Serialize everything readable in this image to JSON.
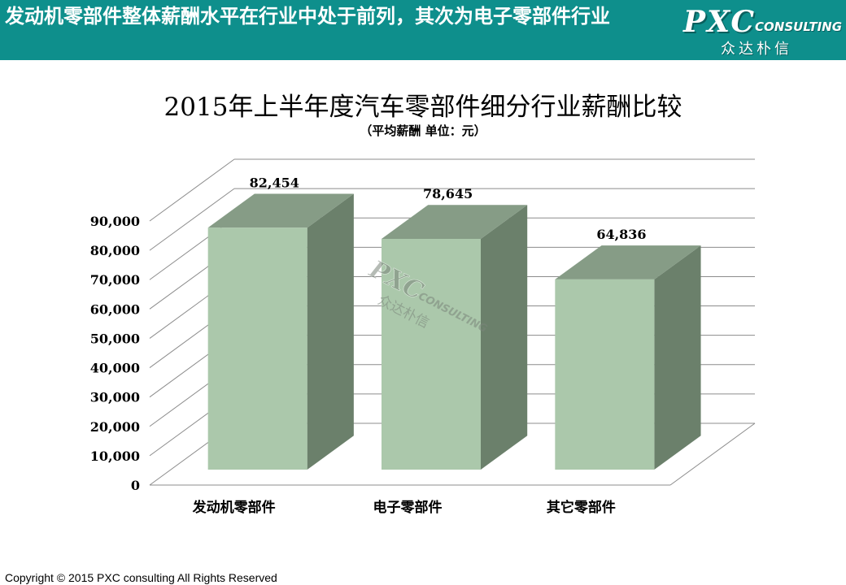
{
  "header": {
    "title": "发动机零部件整体薪酬水平在行业中处于前列，其次为电子零部件行业",
    "logo_main": "PXC",
    "logo_sub": "CONSULTING",
    "logo_cn": "众达朴信"
  },
  "watermark": {
    "main": "PXC",
    "sub": "CONSULTING",
    "cn": "众达朴信"
  },
  "footer": {
    "copyright": "Copyright © 2015  PXC consulting All Rights Reserved"
  },
  "chart_data": {
    "type": "bar",
    "title": "2015年上半年度汽车零部件细分行业薪酬比较",
    "subtitle": "（平均薪酬  单位：元）",
    "categories": [
      "发动机零部件",
      "电子零部件",
      "其它零部件"
    ],
    "values": [
      82454,
      78645,
      64836
    ],
    "value_labels": [
      "82,454",
      "78,645",
      "64,836"
    ],
    "yticks": [
      "0",
      "10,000",
      "20,000",
      "30,000",
      "40,000",
      "50,000",
      "60,000",
      "70,000",
      "80,000",
      "90,000"
    ],
    "ylim": [
      0,
      90000
    ],
    "grid": true,
    "legend": "none",
    "colors": {
      "bar_front": "#abc8ab",
      "bar_side": "#6b806b",
      "bar_top": "#869c86",
      "grid": "#8c8c8c"
    }
  }
}
